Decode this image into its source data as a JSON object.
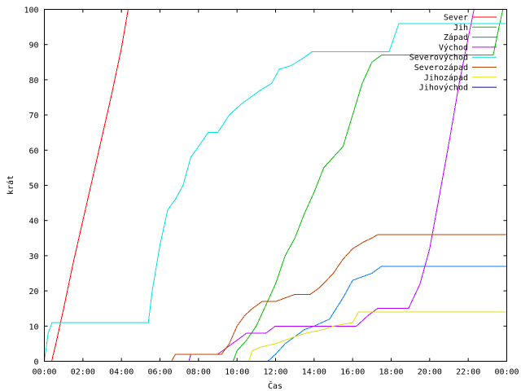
{
  "chart_data": {
    "type": "line",
    "title": "",
    "xlabel": "Čas",
    "ylabel": "krát",
    "xlim": [
      0,
      24
    ],
    "ylim": [
      0,
      100
    ],
    "grid": false,
    "legend_position": "top-right",
    "x_tick_values": [
      0,
      2,
      4,
      6,
      8,
      10,
      12,
      14,
      16,
      18,
      20,
      22,
      24
    ],
    "x_tick_labels": [
      "00:00",
      "02:00",
      "04:00",
      "06:00",
      "08:00",
      "10:00",
      "12:00",
      "14:00",
      "16:00",
      "18:00",
      "20:00",
      "22:00",
      "00:00"
    ],
    "y_tick_values": [
      0,
      10,
      20,
      30,
      40,
      50,
      60,
      70,
      80,
      90,
      100
    ],
    "y_tick_labels": [
      "0",
      "10",
      "20",
      "30",
      "40",
      "50",
      "60",
      "70",
      "80",
      "90",
      "100"
    ],
    "series": [
      {
        "name": "Sever",
        "color": "#ff0000",
        "points": [
          [
            0.38,
            0
          ],
          [
            0.6,
            5
          ],
          [
            1.0,
            15
          ],
          [
            1.5,
            28
          ],
          [
            2.0,
            40
          ],
          [
            2.5,
            52
          ],
          [
            3.0,
            64
          ],
          [
            3.5,
            76
          ],
          [
            4.0,
            89
          ],
          [
            4.35,
            100
          ]
        ]
      },
      {
        "name": "Jih",
        "color": "#00c000",
        "points": [
          [
            9.8,
            0
          ],
          [
            10.0,
            3
          ],
          [
            10.5,
            6
          ],
          [
            11.0,
            10
          ],
          [
            11.5,
            16
          ],
          [
            12.0,
            22
          ],
          [
            12.5,
            30
          ],
          [
            13.0,
            35
          ],
          [
            13.5,
            42
          ],
          [
            14.0,
            48
          ],
          [
            14.5,
            55
          ],
          [
            15.0,
            58
          ],
          [
            15.5,
            61
          ],
          [
            16.0,
            70
          ],
          [
            16.5,
            79
          ],
          [
            17.0,
            85
          ],
          [
            17.5,
            87
          ],
          [
            18.0,
            87
          ],
          [
            19.0,
            87
          ],
          [
            20.0,
            87
          ],
          [
            21.0,
            87
          ],
          [
            22.5,
            87
          ],
          [
            23.3,
            87
          ],
          [
            23.6,
            95
          ],
          [
            23.8,
            100
          ]
        ]
      },
      {
        "name": "Západ",
        "color": "#0080ff",
        "points": [
          [
            11.6,
            0
          ],
          [
            12.0,
            2
          ],
          [
            12.5,
            5
          ],
          [
            13.0,
            7
          ],
          [
            13.5,
            9
          ],
          [
            14.0,
            10
          ],
          [
            14.8,
            12
          ],
          [
            15.5,
            18
          ],
          [
            16.0,
            23
          ],
          [
            17.0,
            25
          ],
          [
            17.5,
            27
          ],
          [
            20.0,
            27
          ],
          [
            24.0,
            27
          ]
        ]
      },
      {
        "name": "Východ",
        "color": "#c000ff",
        "points": [
          [
            7.5,
            0
          ],
          [
            7.6,
            2
          ],
          [
            9.0,
            2
          ],
          [
            10.0,
            6
          ],
          [
            10.5,
            8
          ],
          [
            11.5,
            8
          ],
          [
            12.0,
            10
          ],
          [
            13.0,
            10
          ],
          [
            14.0,
            10
          ],
          [
            15.0,
            10
          ],
          [
            16.2,
            10
          ],
          [
            16.8,
            13
          ],
          [
            17.3,
            15
          ],
          [
            18.0,
            15
          ],
          [
            18.9,
            15
          ],
          [
            19.5,
            22
          ],
          [
            20.0,
            32
          ],
          [
            20.5,
            47
          ],
          [
            21.0,
            62
          ],
          [
            21.5,
            78
          ],
          [
            22.0,
            92
          ],
          [
            22.3,
            100
          ]
        ]
      },
      {
        "name": "Severovýchod",
        "color": "#00e0e0",
        "points": [
          [
            0.0,
            0
          ],
          [
            0.2,
            8
          ],
          [
            0.4,
            11
          ],
          [
            1.0,
            11
          ],
          [
            3.0,
            11
          ],
          [
            5.4,
            11
          ],
          [
            5.6,
            20
          ],
          [
            6.0,
            33
          ],
          [
            6.4,
            43
          ],
          [
            6.8,
            46
          ],
          [
            7.2,
            50
          ],
          [
            7.6,
            58
          ],
          [
            8.0,
            61
          ],
          [
            8.5,
            65
          ],
          [
            9.0,
            65
          ],
          [
            9.6,
            70
          ],
          [
            10.2,
            73
          ],
          [
            10.7,
            75
          ],
          [
            11.2,
            77
          ],
          [
            11.8,
            79
          ],
          [
            12.2,
            83
          ],
          [
            12.8,
            84
          ],
          [
            13.4,
            86
          ],
          [
            13.9,
            88
          ],
          [
            15.0,
            88
          ],
          [
            16.0,
            88
          ],
          [
            17.9,
            88
          ],
          [
            18.4,
            96
          ],
          [
            20.0,
            96
          ],
          [
            24.0,
            96
          ]
        ]
      },
      {
        "name": "Severozápad",
        "color": "#c04000",
        "points": [
          [
            6.6,
            0
          ],
          [
            6.8,
            2
          ],
          [
            8.0,
            2
          ],
          [
            9.2,
            2
          ],
          [
            9.6,
            5
          ],
          [
            10.0,
            10
          ],
          [
            10.4,
            13
          ],
          [
            10.8,
            15
          ],
          [
            11.3,
            17
          ],
          [
            12.0,
            17
          ],
          [
            13.0,
            19
          ],
          [
            13.8,
            19
          ],
          [
            14.3,
            21
          ],
          [
            15.0,
            25
          ],
          [
            15.5,
            29
          ],
          [
            16.0,
            32
          ],
          [
            16.6,
            34
          ],
          [
            17.0,
            35
          ],
          [
            17.3,
            36
          ],
          [
            18.0,
            36
          ],
          [
            24.0,
            36
          ]
        ]
      },
      {
        "name": "Jihozápad",
        "color": "#e0e000",
        "points": [
          [
            10.6,
            0
          ],
          [
            10.8,
            3
          ],
          [
            11.2,
            4
          ],
          [
            12.0,
            5
          ],
          [
            12.5,
            6
          ],
          [
            13.0,
            7
          ],
          [
            13.6,
            8
          ],
          [
            14.5,
            9
          ],
          [
            15.0,
            10
          ],
          [
            16.0,
            11
          ],
          [
            16.3,
            14
          ],
          [
            17.0,
            14
          ],
          [
            18.0,
            14
          ],
          [
            24.0,
            14
          ]
        ]
      },
      {
        "name": "Jihovýchod",
        "color": "#0000c0",
        "points": []
      }
    ]
  }
}
